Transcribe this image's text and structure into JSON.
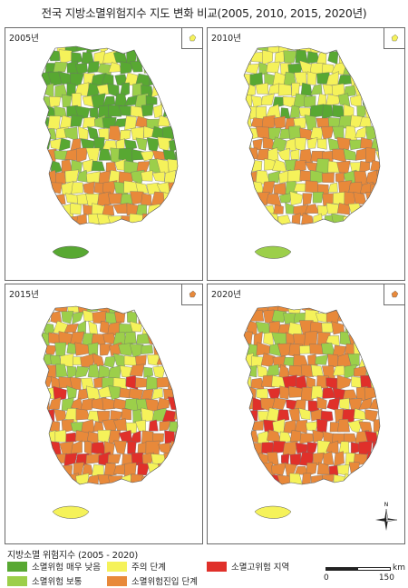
{
  "title": "전국 지방소멸위험지수 지도 변화 비교(2005, 2010, 2015, 2020년)",
  "panels": [
    {
      "year": "2005년"
    },
    {
      "year": "2010년"
    },
    {
      "year": "2015년"
    },
    {
      "year": "2020년"
    }
  ],
  "legend": {
    "title": "지방소멸 위험지수 (2005 - 2020)",
    "items": [
      {
        "label": "소멸위험 매우 낮음",
        "color": "#58a832"
      },
      {
        "label": "소멸위험 보통",
        "color": "#9ccf4a"
      },
      {
        "label": "주의 단계",
        "color": "#f5f25a"
      },
      {
        "label": "소멸위험진입 단계",
        "color": "#e8893a"
      },
      {
        "label": "소멸고위험 지역",
        "color": "#e0302a"
      }
    ]
  },
  "scale": {
    "unit": "km",
    "min": "0",
    "max": "150"
  },
  "compass_label": "N"
}
